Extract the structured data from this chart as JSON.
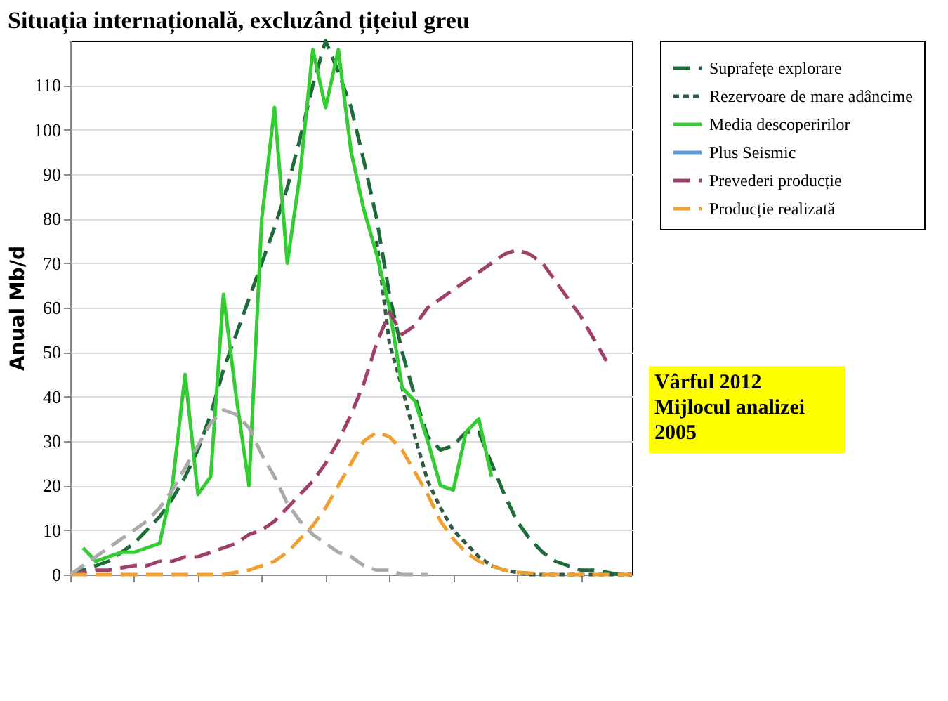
{
  "chart_data": {
    "type": "line",
    "title": "Situația internațională, excluzând țițeiul greu",
    "ylabel": "Anual Mb/d",
    "categories": [
      null,
      null,
      null,
      null,
      null,
      null,
      null,
      null,
      null,
      null,
      null,
      null,
      null,
      null,
      null,
      null,
      null,
      null,
      null,
      null,
      null,
      null,
      null,
      null,
      null,
      null,
      null,
      null,
      null,
      null,
      null,
      null,
      null,
      null,
      null,
      null,
      null,
      null,
      null,
      null,
      null,
      null,
      null,
      null,
      null
    ],
    "series": [
      {
        "name": "Suprafețe explorare",
        "color": "#1e6b3a",
        "line_style": "dashed",
        "values": [
          0,
          1,
          2,
          3,
          5,
          7,
          10,
          13,
          17,
          22,
          28,
          36,
          46,
          54,
          62,
          70,
          78,
          87,
          98,
          110,
          120,
          113,
          105,
          93,
          80,
          63,
          50,
          40,
          31,
          28,
          29,
          32,
          32,
          25,
          18,
          12,
          8,
          5,
          3,
          2,
          1,
          1,
          0.5,
          0,
          0
        ]
      },
      {
        "name": "Rezervoare de mare adâncime",
        "color": "#2f5a40",
        "line_style": "dotted",
        "values": [
          null,
          null,
          null,
          null,
          null,
          null,
          null,
          null,
          null,
          null,
          null,
          null,
          null,
          null,
          null,
          null,
          null,
          null,
          null,
          null,
          null,
          null,
          null,
          null,
          75,
          52,
          42,
          31,
          21,
          15,
          10,
          7,
          4,
          2,
          1,
          0.5,
          0,
          0,
          0,
          0,
          0,
          0,
          0,
          0,
          0
        ]
      },
      {
        "name": "Media descoperirilor",
        "color": "#33cc33",
        "line_style": "solid",
        "values": [
          null,
          6,
          3,
          4,
          5,
          5,
          6,
          7,
          20,
          45,
          18,
          22,
          63,
          40,
          20,
          80,
          105,
          70,
          90,
          118,
          105,
          118,
          95,
          82,
          72,
          60,
          42,
          39,
          30,
          20,
          19,
          32,
          35,
          22,
          null,
          null,
          null,
          null,
          null,
          null,
          null,
          null,
          null,
          null,
          null
        ]
      },
      {
        "name": "Plus Seismic",
        "color": "#5b9bd5",
        "line_style": "solid",
        "values": [
          null,
          null,
          null,
          null,
          null,
          null,
          null,
          null,
          null,
          null,
          null,
          null,
          null,
          null,
          null,
          null,
          null,
          null,
          null,
          null,
          null,
          null,
          null,
          null,
          null,
          null,
          null,
          null,
          null,
          null,
          null,
          null,
          null,
          null,
          null,
          null,
          null,
          null,
          null,
          null,
          null,
          null,
          null,
          null,
          null
        ]
      },
      {
        "name": "Prevederi producție",
        "color": "#a0406a",
        "line_style": "dashed",
        "values": [
          0,
          0.5,
          1,
          1,
          1.5,
          2,
          2,
          3,
          3,
          4,
          4,
          5,
          6,
          7,
          9,
          10,
          12,
          15,
          18,
          21,
          25,
          30,
          36,
          43,
          52,
          59,
          54,
          56,
          60,
          62,
          64,
          66,
          68,
          70,
          72,
          73,
          72,
          70,
          66,
          62,
          58,
          53,
          48,
          null,
          null
        ]
      },
      {
        "name": "Producție realizată",
        "color": "#f0a030",
        "line_style": "dashed",
        "values": [
          0,
          0,
          0,
          0,
          0,
          0,
          0,
          0,
          0,
          0,
          0,
          0,
          0,
          0.5,
          1,
          2,
          3,
          5,
          8,
          11,
          15,
          20,
          25,
          30,
          32,
          31,
          28,
          23,
          18,
          12,
          8,
          5,
          3,
          2,
          1,
          0.5,
          0.3,
          0,
          0,
          0,
          0,
          0,
          0,
          0,
          0
        ]
      },
      {
        "color": "#aaaaaa",
        "line_style": "dashed",
        "values": [
          0,
          2,
          4,
          6,
          8,
          10,
          12,
          15,
          19,
          24,
          29,
          34,
          37,
          36,
          33,
          27,
          22,
          16,
          12,
          9,
          7,
          5,
          4,
          2,
          1,
          1,
          0,
          0,
          0,
          null,
          null,
          null,
          null,
          null,
          null,
          null,
          null,
          null,
          null,
          null,
          null,
          null,
          null,
          null,
          null
        ]
      }
    ],
    "ylim": [
      0,
      120
    ],
    "yticks": [
      0,
      10,
      20,
      30,
      40,
      50,
      60,
      70,
      80,
      90,
      100,
      110
    ],
    "grid": "y",
    "legend": "right",
    "tick_labels": "y",
    "annotations": [
      "Vârful 2012\nMijlocul analizei\n2005"
    ]
  }
}
